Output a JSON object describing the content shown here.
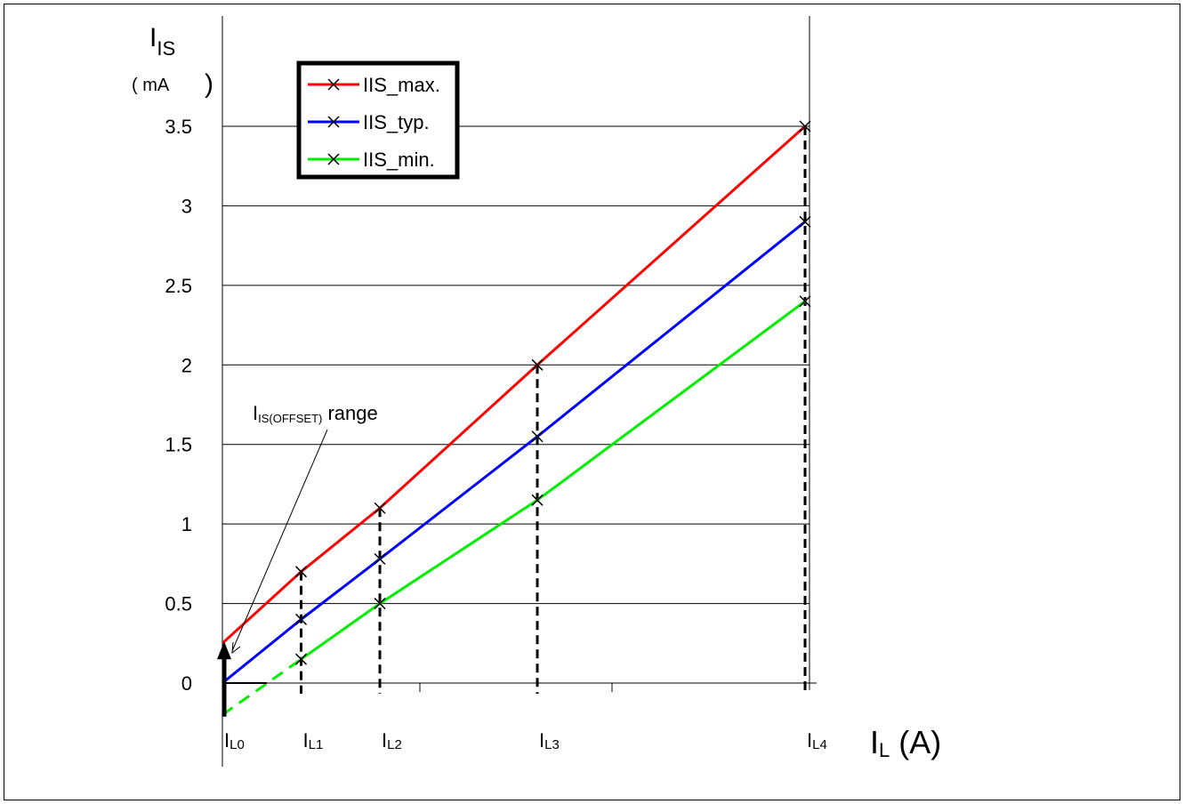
{
  "chart_data": {
    "type": "line",
    "ylabel_main": "I",
    "ylabel_sub": "IS",
    "ylabel_unit_open": "( mA",
    "ylabel_unit_close": ")",
    "xlabel_main": "I",
    "xlabel_sub": "L",
    "xlabel_unit": " (A)",
    "ylim": [
      -0.2,
      3.5
    ],
    "y_ticks": [
      "0",
      "0.5",
      "1",
      "1.5",
      "2",
      "2.5",
      "3",
      "3.5"
    ],
    "y_tick_values": [
      0,
      0.5,
      1,
      1.5,
      2,
      2.5,
      3,
      3.5
    ],
    "x_points": [
      {
        "main": "I",
        "sub": "L0",
        "x": 0
      },
      {
        "main": "I",
        "sub": "L1",
        "x": 0.5
      },
      {
        "main": "I",
        "sub": "L2",
        "x": 1.0
      },
      {
        "main": "I",
        "sub": "L3",
        "x": 2.0
      },
      {
        "main": "I",
        "sub": "L4",
        "x": 3.7
      }
    ],
    "grid": true,
    "legend_position": "top-left",
    "series": [
      {
        "name": "IIS_max.",
        "color": "#ff0000",
        "x": [
          0,
          0.5,
          1.0,
          2.0,
          3.7
        ],
        "y": [
          0.25,
          0.7,
          1.1,
          2.0,
          3.5
        ]
      },
      {
        "name": "IIS_typ.",
        "color": "#0000ff",
        "x": [
          0,
          0.5,
          1.0,
          2.0,
          3.7
        ],
        "y": [
          0.0,
          0.4,
          0.78,
          1.55,
          2.9
        ]
      },
      {
        "name": "IIS_min.",
        "color": "#00ee00",
        "x": [
          0.5,
          1.0,
          2.0,
          3.7
        ],
        "y": [
          0.15,
          0.5,
          1.15,
          2.4
        ],
        "dashed_extension": {
          "x": [
            0,
            0.5
          ],
          "y": [
            -0.2,
            0.15
          ]
        }
      }
    ],
    "annotation": {
      "main": "I",
      "sub": "IS(OFFSET)",
      "text": " range",
      "range": [
        -0.2,
        0.25
      ]
    }
  }
}
